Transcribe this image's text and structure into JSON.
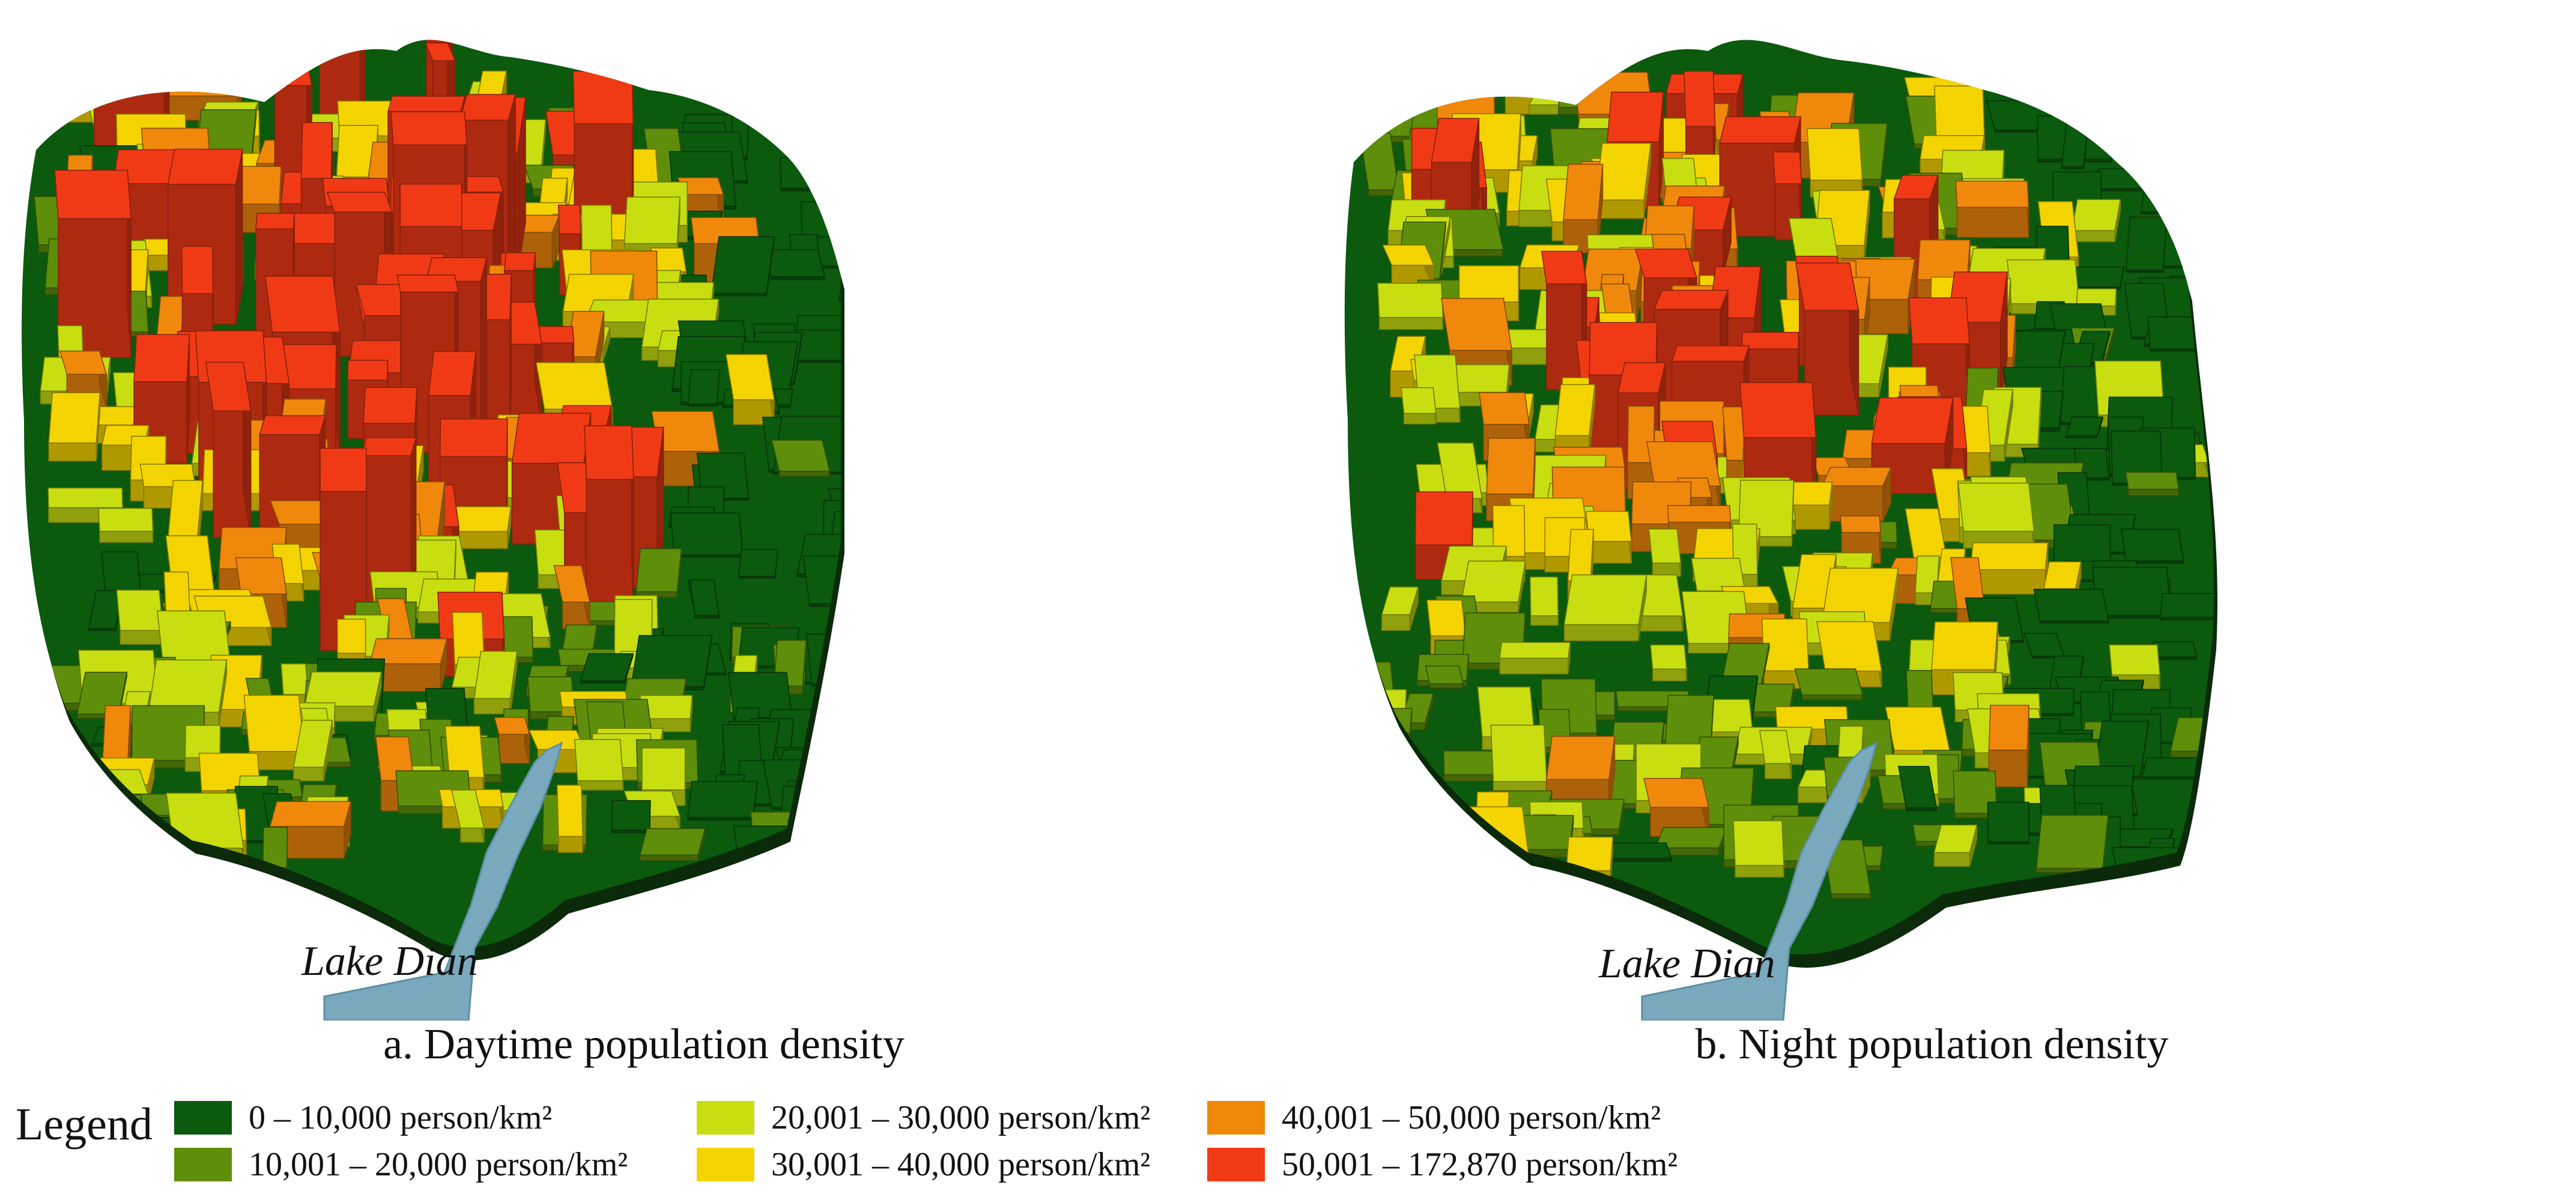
{
  "panels": [
    {
      "caption": "a. Daytime population density",
      "lake_label": "Lake Dian",
      "lake_color": "#7AA9BE"
    },
    {
      "caption": "b. Night population density",
      "lake_label": "Lake Dian",
      "lake_color": "#7AA9BE"
    }
  ],
  "legend": {
    "title": "Legend",
    "items": [
      {
        "label": "0 – 10,000 person/km²",
        "color": "#0B5A0E"
      },
      {
        "label": "10,001 – 20,000 person/km²",
        "color": "#5E8E0A"
      },
      {
        "label": "20,001 – 30,000 person/km²",
        "color": "#C8DE10"
      },
      {
        "label": "30,001 – 40,000 person/km²",
        "color": "#F4D400"
      },
      {
        "label": "40,001 – 50,000 person/km²",
        "color": "#F0880C"
      },
      {
        "label": "50,001 – 172,870 person/km²",
        "color": "#F03A16"
      }
    ]
  }
}
